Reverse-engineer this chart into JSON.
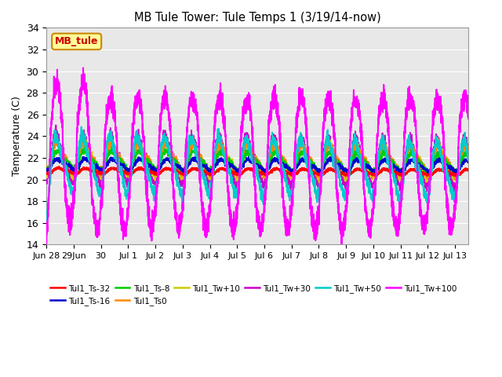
{
  "title": "MB Tule Tower: Tule Temps 1 (3/19/14-now)",
  "ylabel": "Temperature (C)",
  "ylim": [
    14,
    34
  ],
  "yticks": [
    14,
    16,
    18,
    20,
    22,
    24,
    26,
    28,
    30,
    32,
    34
  ],
  "background_color": "#ffffff",
  "plot_bg_color": "#e8e8e8",
  "grid_color": "#ffffff",
  "annotation_box": {
    "text": "MB_tule",
    "facecolor": "#ffff99",
    "edgecolor": "#cc8800",
    "textcolor": "#cc0000"
  },
  "series": {
    "Tul1_Ts-32": {
      "color": "#ff0000",
      "linewidth": 1.8,
      "zorder": 5,
      "base": 20.8,
      "amp": 0.3,
      "phase": 1.5,
      "noise": 0.05
    },
    "Tul1_Ts-16": {
      "color": "#0000cc",
      "linewidth": 1.4,
      "zorder": 4,
      "base": 21.4,
      "amp": 0.6,
      "phase": 1.4,
      "noise": 0.1
    },
    "Tul1_Ts-8": {
      "color": "#00cc00",
      "linewidth": 1.2,
      "zorder": 4,
      "base": 21.8,
      "amp": 1.0,
      "phase": 1.3,
      "noise": 0.15
    },
    "Tul1_Ts0": {
      "color": "#ff8800",
      "linewidth": 1.2,
      "zorder": 4,
      "base": 22.0,
      "amp": 1.5,
      "phase": 1.2,
      "noise": 0.2
    },
    "Tul1_Tw+10": {
      "color": "#cccc00",
      "linewidth": 1.2,
      "zorder": 3,
      "base": 22.0,
      "amp": 1.8,
      "phase": 1.1,
      "noise": 0.2
    },
    "Tul1_Tw+30": {
      "color": "#cc00cc",
      "linewidth": 1.2,
      "zorder": 3,
      "base": 22.0,
      "amp": 2.5,
      "phase": 1.0,
      "noise": 0.25
    },
    "Tul1_Tw+50": {
      "color": "#00cccc",
      "linewidth": 1.4,
      "zorder": 6,
      "base": 21.5,
      "amp": 3.0,
      "phase": 0.9,
      "noise": 0.3
    },
    "Tul1_Tw+100": {
      "color": "#ff00ff",
      "linewidth": 1.5,
      "zorder": 7,
      "base": 21.5,
      "amp": 6.0,
      "phase": 0.7,
      "noise": 0.5
    }
  },
  "legend": [
    {
      "label": "Tul1_Ts-32",
      "color": "#ff0000"
    },
    {
      "label": "Tul1_Ts-16",
      "color": "#0000cc"
    },
    {
      "label": "Tul1_Ts-8",
      "color": "#00cc00"
    },
    {
      "label": "Tul1_Ts0",
      "color": "#ff8800"
    },
    {
      "label": "Tul1_Tw+10",
      "color": "#cccc00"
    },
    {
      "label": "Tul1_Tw+30",
      "color": "#cc00cc"
    },
    {
      "label": "Tul1_Tw+50",
      "color": "#00cccc"
    },
    {
      "label": "Tul1_Tw+100",
      "color": "#ff00ff"
    }
  ],
  "xtick_labels": [
    "Jun 28",
    "29Jun",
    "30",
    "Jul 1",
    "Jul 2",
    "Jul 3",
    "Jul 4",
    "Jul 5",
    "Jul 6",
    "Jul 7",
    "Jul 8",
    "Jul 9",
    "Jul 10",
    "Jul 11",
    "Jul 12",
    "Jul 13"
  ],
  "xtick_positions": [
    0,
    1,
    2,
    3,
    4,
    5,
    6,
    7,
    8,
    9,
    10,
    11,
    12,
    13,
    14,
    15
  ]
}
